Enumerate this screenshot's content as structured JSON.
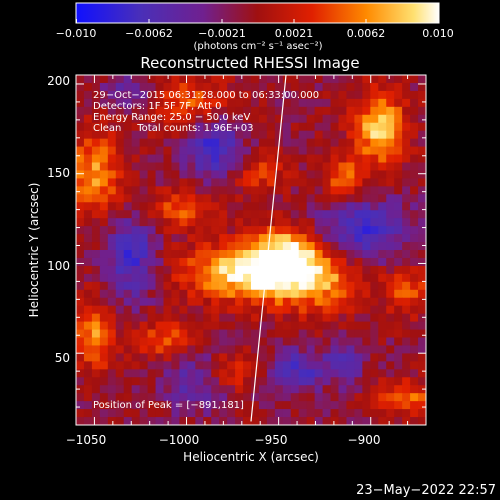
{
  "colorbar": {
    "ticks": [
      "−0.010",
      "−0.0062",
      "−0.0021",
      "0.0021",
      "0.0062",
      "0.010"
    ],
    "unit_label": "(photons cm⁻² s⁻¹ asec⁻²)"
  },
  "plot": {
    "title": "Reconstructed RHESSI Image",
    "xlabel": "Heliocentric X (arcsec)",
    "ylabel": "Heliocentric Y (arcsec)",
    "x_ticks": [
      "−1050",
      "−1000",
      "−950",
      "−900"
    ],
    "y_ticks": [
      "200",
      "150",
      "100",
      "50"
    ],
    "info_lines": [
      "29−Oct−2015 06:31:28.000 to 06:33:00.000",
      "Detectors: 1F 5F 7F, Att 0",
      "Energy Range: 25.0 − 50.0 keV",
      "Clean     Total counts: 1.96E+03"
    ],
    "peak_text": "Position of Peak = [−891,181]"
  },
  "footer": {
    "timestamp": "23−May−2022 22:57"
  },
  "colors": {
    "background": "#000000",
    "foreground": "#ffffff",
    "colormap": [
      "#1010ff",
      "#5030b0",
      "#702090",
      "#b00000",
      "#ff4000",
      "#ff9a00",
      "#ffff90",
      "#ffffff"
    ]
  },
  "chart_data": {
    "type": "heatmap",
    "title": "Reconstructed RHESSI Image",
    "xlabel": "Heliocentric X (arcsec)",
    "ylabel": "Heliocentric Y (arcsec)",
    "xlim": [
      -1060,
      -870
    ],
    "ylim": [
      10,
      205
    ],
    "color_range": [
      -0.01,
      0.01
    ],
    "colorbar_ticks": [
      -0.01,
      -0.0062,
      -0.0021,
      0.0021,
      0.0062,
      0.01
    ],
    "blobs": [
      {
        "x": -965,
        "y": 95,
        "sx": 25,
        "sy": 11,
        "amp": 0.0105
      },
      {
        "x": -945,
        "y": 108,
        "sx": 12,
        "sy": 10,
        "amp": 0.0075
      },
      {
        "x": -930,
        "y": 90,
        "sx": 18,
        "sy": 12,
        "amp": 0.006
      },
      {
        "x": -895,
        "y": 175,
        "sx": 10,
        "sy": 14,
        "amp": 0.009
      },
      {
        "x": -915,
        "y": 148,
        "sx": 8,
        "sy": 8,
        "amp": 0.0055
      },
      {
        "x": -1050,
        "y": 150,
        "sx": 11,
        "sy": 17,
        "amp": 0.007
      },
      {
        "x": -1050,
        "y": 60,
        "sx": 8,
        "sy": 14,
        "amp": 0.0065
      },
      {
        "x": -998,
        "y": 190,
        "sx": 18,
        "sy": 10,
        "amp": 0.005
      },
      {
        "x": -1005,
        "y": 130,
        "sx": 15,
        "sy": 7,
        "amp": 0.0055
      },
      {
        "x": -1012,
        "y": 58,
        "sx": 12,
        "sy": 8,
        "amp": 0.005
      },
      {
        "x": -960,
        "y": 150,
        "sx": 10,
        "sy": 8,
        "amp": 0.004
      },
      {
        "x": -880,
        "y": 85,
        "sx": 9,
        "sy": 9,
        "amp": 0.005
      },
      {
        "x": -880,
        "y": 25,
        "sx": 12,
        "sy": 7,
        "amp": 0.0055
      },
      {
        "x": -975,
        "y": 40,
        "sx": 10,
        "sy": 8,
        "amp": 0.004
      },
      {
        "x": -985,
        "y": 165,
        "sx": 10,
        "sy": 12,
        "amp": -0.0065
      },
      {
        "x": -905,
        "y": 118,
        "sx": 18,
        "sy": 12,
        "amp": -0.006
      },
      {
        "x": -1030,
        "y": 105,
        "sx": 10,
        "sy": 18,
        "amp": -0.006
      },
      {
        "x": -1030,
        "y": 195,
        "sx": 10,
        "sy": 8,
        "amp": -0.004
      },
      {
        "x": -940,
        "y": 40,
        "sx": 10,
        "sy": 8,
        "amp": -0.0055
      },
      {
        "x": -995,
        "y": 35,
        "sx": 12,
        "sy": 12,
        "amp": -0.004
      },
      {
        "x": -915,
        "y": 45,
        "sx": 8,
        "sy": 8,
        "amp": -0.004
      }
    ],
    "limb_line": {
      "x": [
        -965,
        -946
      ],
      "y": [
        12,
        205
      ]
    },
    "peak": [
      -891,
      181
    ]
  }
}
